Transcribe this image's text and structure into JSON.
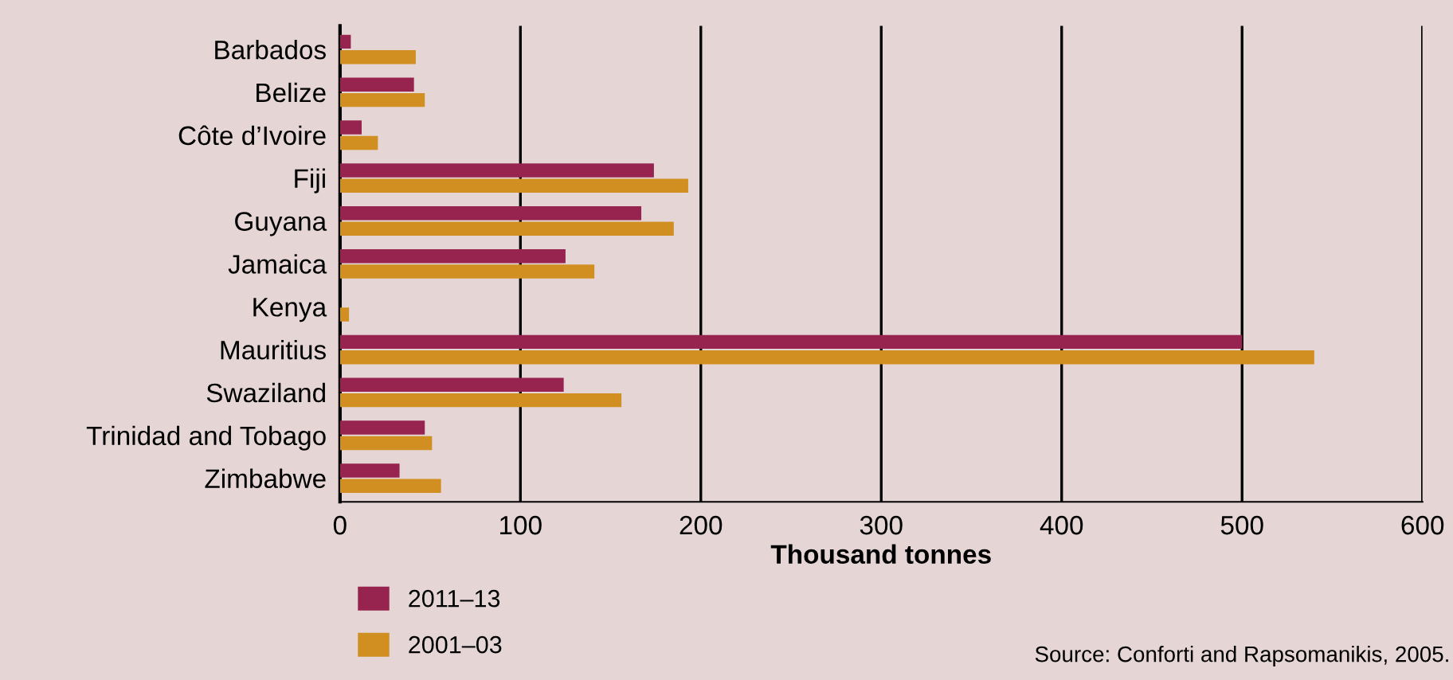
{
  "chart_data": {
    "type": "bar",
    "orientation": "horizontal",
    "xlabel": "Thousand tonnes",
    "categories": [
      "Barbados",
      "Belize",
      "Côte d’Ivoire",
      "Fiji",
      "Guyana",
      "Jamaica",
      "Kenya",
      "Mauritius",
      "Swaziland",
      "Trinidad and Tobago",
      "Zimbabwe"
    ],
    "series": [
      {
        "name": "2011–13",
        "color": "#97234f",
        "values": [
          6,
          41,
          12,
          174,
          167,
          125,
          0,
          500,
          124,
          47,
          33
        ]
      },
      {
        "name": "2001–03",
        "color": "#d08f20",
        "values": [
          42,
          47,
          21,
          193,
          185,
          141,
          5,
          540,
          156,
          51,
          56
        ]
      }
    ],
    "xlim": [
      0,
      600
    ],
    "xticks": [
      0,
      100,
      200,
      300,
      400,
      500,
      600
    ],
    "grid": "x",
    "legend": "bottom left",
    "annotations": [
      "Source: Conforti and Rapsomanikis, 2005."
    ]
  }
}
